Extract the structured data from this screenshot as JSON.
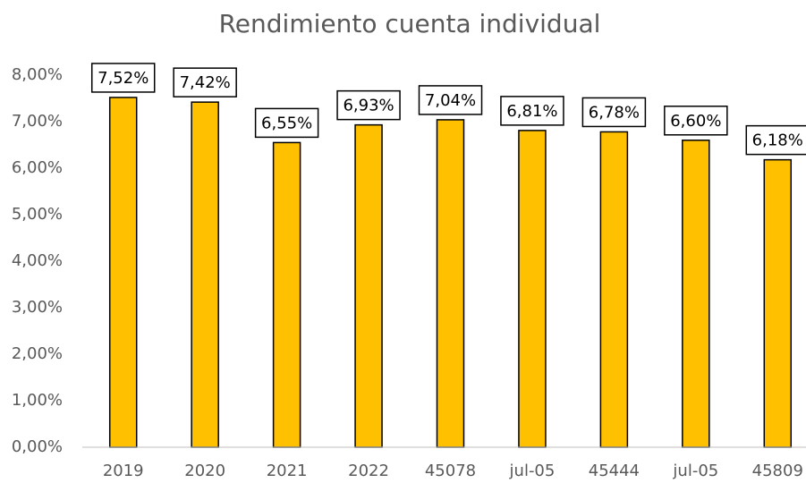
{
  "chart_data": {
    "type": "bar",
    "title": "Rendimiento cuenta individual",
    "categories": [
      "2019",
      "2020",
      "2021",
      "2022",
      "45078",
      "jul-05",
      "45444",
      "jul-05",
      "45809"
    ],
    "values": [
      7.52,
      7.42,
      6.55,
      6.93,
      7.04,
      6.81,
      6.78,
      6.6,
      6.18
    ],
    "value_labels": [
      "7,52%",
      "7,42%",
      "6,55%",
      "6,93%",
      "7,04%",
      "6,81%",
      "6,78%",
      "6,60%",
      "6,18%"
    ],
    "color": "#ffc000",
    "ylim": [
      0,
      8
    ],
    "yticks": [
      {
        "value": 0,
        "label": "0,00%"
      },
      {
        "value": 1,
        "label": "1,00%"
      },
      {
        "value": 2,
        "label": "2,00%"
      },
      {
        "value": 3,
        "label": "3,00%"
      },
      {
        "value": 4,
        "label": "4,00%"
      },
      {
        "value": 5,
        "label": "5,00%"
      },
      {
        "value": 6,
        "label": "6,00%"
      },
      {
        "value": 7,
        "label": "7,00%"
      },
      {
        "value": 8,
        "label": "8,00%"
      }
    ],
    "grid": false
  }
}
